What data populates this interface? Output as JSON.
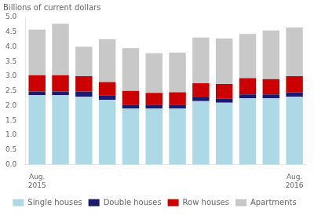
{
  "chart_data": {
    "type": "bar",
    "stacked": true,
    "ylabel": "Billions of current dollars",
    "categories": [
      "Aug.\n2015",
      null,
      null,
      null,
      null,
      null,
      null,
      null,
      null,
      null,
      null,
      "Aug.\n2016"
    ],
    "series": [
      {
        "name": "Single houses",
        "color": "#add8e6",
        "values": [
          2.35,
          2.35,
          2.3,
          2.2,
          1.9,
          1.9,
          1.9,
          2.15,
          2.1,
          2.25,
          2.25,
          2.3
        ]
      },
      {
        "name": "Double houses",
        "color": "#1a1a6e",
        "values": [
          0.13,
          0.13,
          0.18,
          0.15,
          0.13,
          0.13,
          0.13,
          0.13,
          0.13,
          0.13,
          0.13,
          0.15
        ]
      },
      {
        "name": "Row houses",
        "color": "#cc0000",
        "values": [
          0.55,
          0.55,
          0.52,
          0.45,
          0.47,
          0.4,
          0.42,
          0.48,
          0.5,
          0.55,
          0.52,
          0.55
        ]
      },
      {
        "name": "Apartments",
        "color": "#c8c8c8",
        "values": [
          1.55,
          1.75,
          1.0,
          1.45,
          1.45,
          1.35,
          1.35,
          1.55,
          1.55,
          1.5,
          1.65,
          1.65
        ]
      }
    ],
    "ylim": [
      0.0,
      5.0
    ],
    "yticks": [
      {
        "value": 0,
        "label": "0.0"
      },
      {
        "value": 0.5,
        "label": "0.5"
      },
      {
        "value": 1,
        "label": "1.0"
      },
      {
        "value": 1.5,
        "label": "1.5"
      },
      {
        "value": 2,
        "label": "2.0"
      },
      {
        "value": 2.5,
        "label": "2.5"
      },
      {
        "value": 3,
        "label": "3.0"
      },
      {
        "value": 3.5,
        "label": "3.5"
      },
      {
        "value": 4,
        "label": "4.0"
      },
      {
        "value": 4.5,
        "label": "4.5"
      },
      {
        "value": 5,
        "label": "5.0"
      }
    ],
    "grid": false,
    "legend": "bottom"
  }
}
